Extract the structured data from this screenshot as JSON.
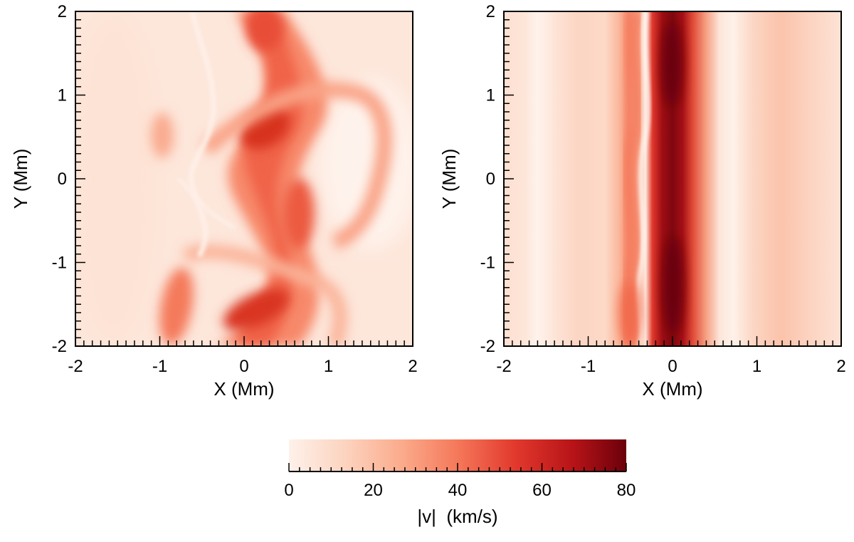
{
  "chart_data": [
    {
      "type": "heatmap",
      "panel": "left",
      "xlabel": "X (Mm)",
      "ylabel": "Y (Mm)",
      "xlim": [
        -2,
        2
      ],
      "ylim": [
        -2,
        2
      ],
      "x_ticks": [
        "-2",
        "-1",
        "0",
        "1",
        "2"
      ],
      "y_ticks": [
        "-2",
        "-1",
        "0",
        "1",
        "2"
      ],
      "grid": false,
      "field": "|v|",
      "features": [
        {
          "x": 0.25,
          "y": 0.6,
          "value": 62
        },
        {
          "x": 0.3,
          "y": -1.5,
          "value": 58
        },
        {
          "x": 0.2,
          "y": 1.8,
          "value": 50
        },
        {
          "x": 0.4,
          "y": -0.3,
          "value": 48
        },
        {
          "x": -0.9,
          "y": -1.5,
          "value": 38
        },
        {
          "x": -1.05,
          "y": 0.5,
          "value": 30
        },
        {
          "x": 1.5,
          "y": 0.5,
          "value": 4
        }
      ]
    },
    {
      "type": "heatmap",
      "panel": "right",
      "xlabel": "X (Mm)",
      "ylabel": "Y (Mm)",
      "xlim": [
        -2,
        2
      ],
      "ylim": [
        -2,
        2
      ],
      "x_ticks": [
        "-2",
        "-1",
        "0",
        "1",
        "2"
      ],
      "y_ticks": [
        "-2",
        "-1",
        "0",
        "1",
        "2"
      ],
      "grid": false,
      "field": "|v|",
      "features": [
        {
          "x": 0.0,
          "y": 0.0,
          "value": 78
        },
        {
          "x": -0.5,
          "y": -1.5,
          "value": 45
        },
        {
          "x": -0.6,
          "y": 0.8,
          "value": 35
        },
        {
          "x": 0.5,
          "y": 0.0,
          "value": 22
        },
        {
          "x": 1.5,
          "y": 0.0,
          "value": 20
        },
        {
          "x": -1.5,
          "y": 0.0,
          "value": 8
        }
      ]
    }
  ],
  "colorbar": {
    "label": "|v|  (km/s)",
    "range": [
      0,
      80
    ],
    "ticks": [
      "0",
      "20",
      "40",
      "60",
      "80"
    ],
    "colors": [
      "#fef1ea",
      "#fcd3be",
      "#fba98a",
      "#f5785a",
      "#e2392d",
      "#b81418",
      "#6b000b"
    ]
  }
}
